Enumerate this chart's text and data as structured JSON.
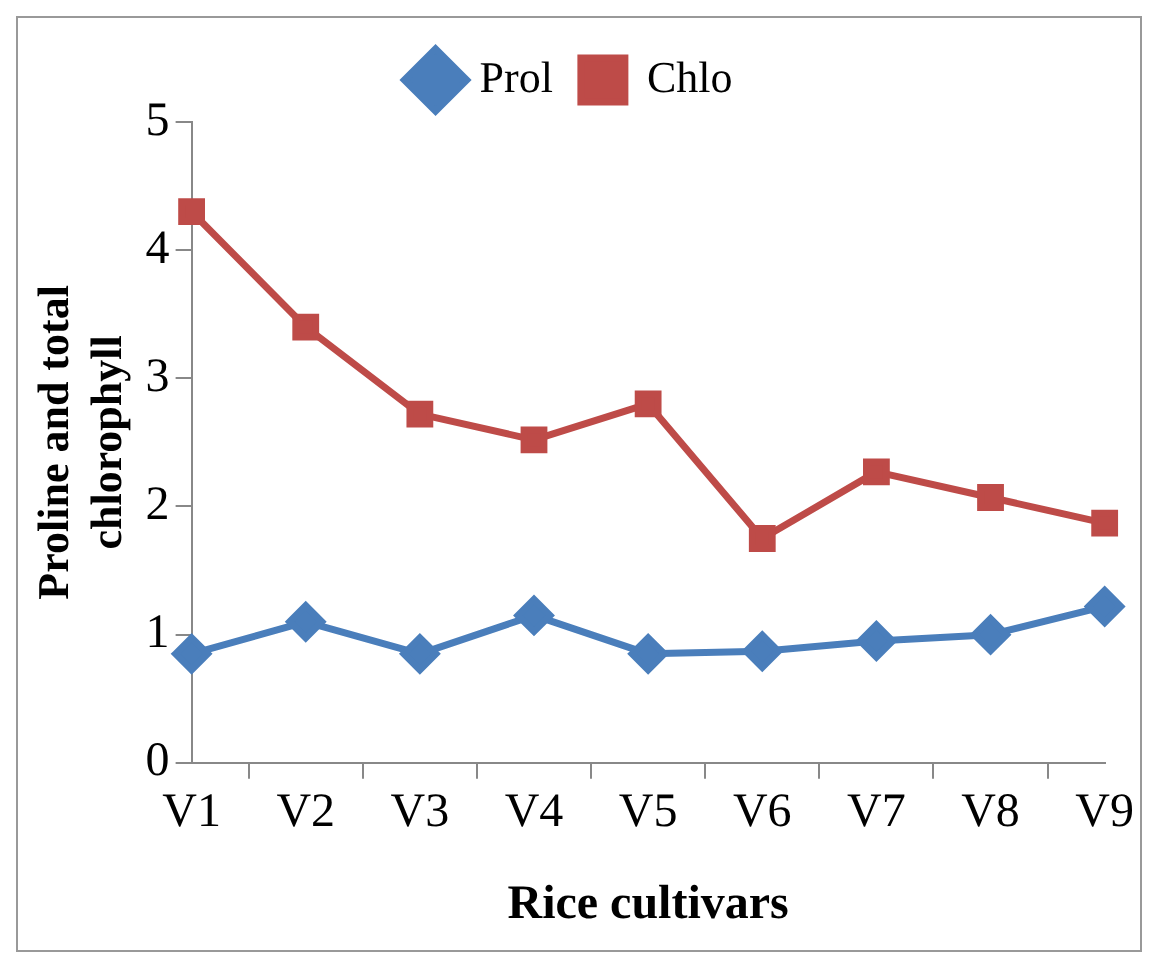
{
  "chart_data": {
    "type": "line",
    "xlabel": "Rice cultivars",
    "ylabel": "Proline and total chlorophyll",
    "categories": [
      "V1",
      "V2",
      "V3",
      "V4",
      "V5",
      "V6",
      "V7",
      "V8",
      "V9"
    ],
    "series": [
      {
        "name": "Prol",
        "color": "#4a7ebb",
        "marker": "diamond",
        "values": [
          0.85,
          1.1,
          0.85,
          1.15,
          0.85,
          0.87,
          0.95,
          1.0,
          1.22
        ]
      },
      {
        "name": "Chlo",
        "color": "#be4b48",
        "marker": "square",
        "values": [
          4.3,
          3.4,
          2.72,
          2.52,
          2.8,
          1.75,
          2.27,
          2.07,
          1.87
        ]
      }
    ],
    "ylim": [
      0,
      5
    ],
    "yticks": [
      0,
      1,
      2,
      3,
      4,
      5
    ],
    "grid": false,
    "legend": "top",
    "line_style": "solid"
  }
}
